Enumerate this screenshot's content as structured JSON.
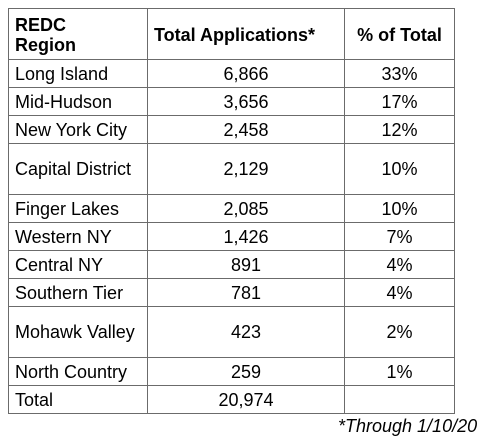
{
  "table": {
    "headers": [
      "REDC\nRegion",
      "Total Applications*",
      "% of Total"
    ],
    "rows": [
      {
        "region": "Long Island",
        "applications": "6,866",
        "percent": "33%"
      },
      {
        "region": "Mid-Hudson",
        "applications": "3,656",
        "percent": "17%"
      },
      {
        "region": "New York City",
        "applications": "2,458",
        "percent": "12%"
      },
      {
        "region": "Capital District",
        "applications": "2,129",
        "percent": "10%"
      },
      {
        "region": "Finger Lakes",
        "applications": "2,085",
        "percent": "10%"
      },
      {
        "region": "Western NY",
        "applications": "1,426",
        "percent": "7%"
      },
      {
        "region": "Central NY",
        "applications": "891",
        "percent": "4%"
      },
      {
        "region": "Southern Tier",
        "applications": "781",
        "percent": "4%"
      },
      {
        "region": "Mohawk Valley",
        "applications": "423",
        "percent": "2%"
      },
      {
        "region": "North Country",
        "applications": "259",
        "percent": "1%"
      }
    ],
    "total": {
      "label": "Total",
      "applications": "20,974",
      "percent": ""
    }
  },
  "footnote": "*Through 1/10/20"
}
